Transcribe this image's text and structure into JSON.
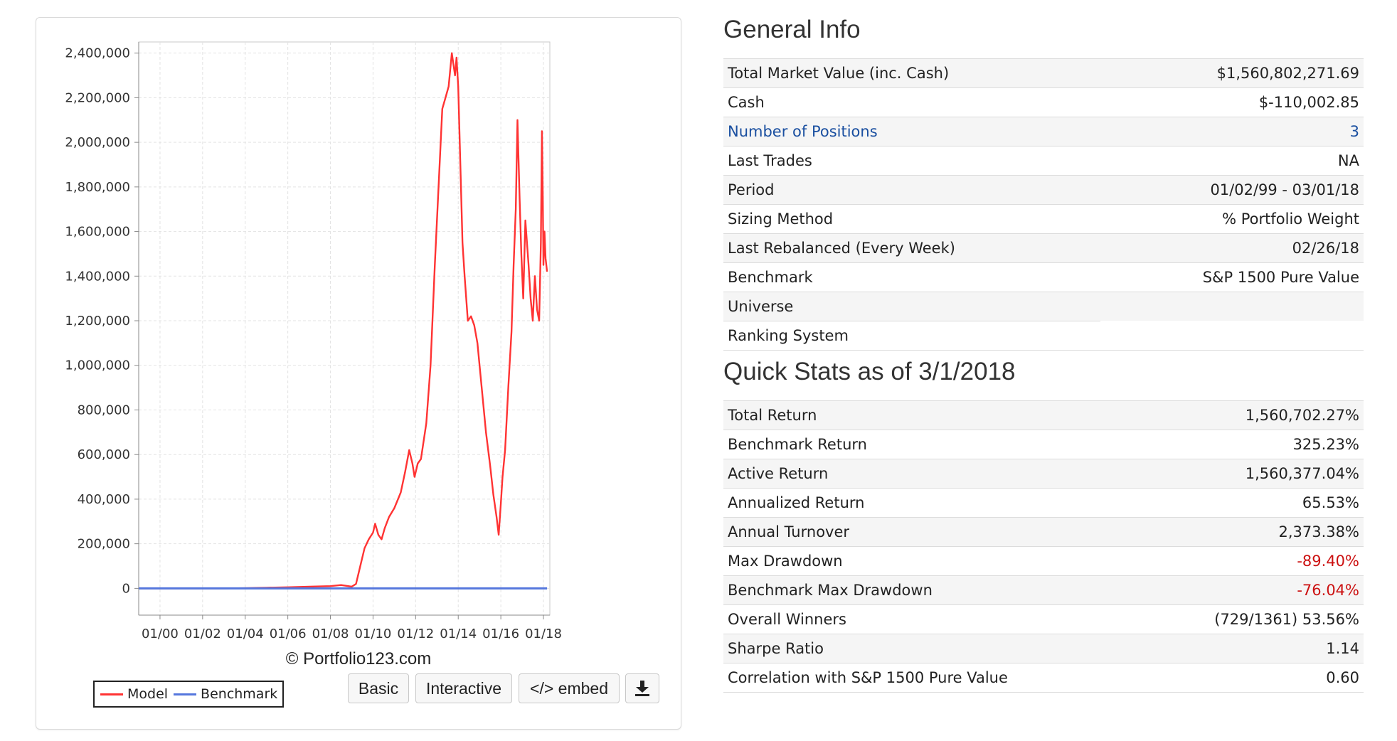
{
  "chart": {
    "copyright": "© Portfolio123.com",
    "legend": [
      {
        "label": "Model",
        "color": "#ff3333"
      },
      {
        "label": "Benchmark",
        "color": "#5577dd"
      }
    ],
    "buttons": {
      "basic": "Basic",
      "interactive": "Interactive",
      "embed": "</> embed",
      "download_icon": "download-icon"
    }
  },
  "chart_data": {
    "type": "line",
    "x_ticks": [
      "01/00",
      "01/02",
      "01/04",
      "01/06",
      "01/08",
      "01/10",
      "01/12",
      "01/14",
      "01/16",
      "01/18"
    ],
    "y_ticks": [
      "2,400,000",
      "2,200,000",
      "2,000,000",
      "1,800,000",
      "1,600,000",
      "1,400,000",
      "1,200,000",
      "1,000,000",
      "800,000",
      "600,000",
      "400,000",
      "200,000",
      "0"
    ],
    "ylim": [
      -120000,
      2450000
    ],
    "xlim": [
      1999.0,
      2018.3
    ],
    "grid": true,
    "legend_position": "bottom-left",
    "series": [
      {
        "name": "Model",
        "color": "#ff3333",
        "x": [
          1999.0,
          2000.0,
          2001.0,
          2002.0,
          2003.0,
          2004.0,
          2004.5,
          2005.0,
          2006.0,
          2007.0,
          2008.0,
          2008.5,
          2009.0,
          2009.2,
          2009.35,
          2009.6,
          2009.8,
          2010.0,
          2010.1,
          2010.25,
          2010.4,
          2010.55,
          2010.75,
          2011.0,
          2011.3,
          2011.5,
          2011.7,
          2011.85,
          2011.95,
          2012.1,
          2012.25,
          2012.5,
          2012.7,
          2012.9,
          2013.1,
          2013.25,
          2013.4,
          2013.55,
          2013.7,
          2013.85,
          2013.92,
          2014.0,
          2014.1,
          2014.2,
          2014.3,
          2014.45,
          2014.6,
          2014.75,
          2014.9,
          2015.1,
          2015.3,
          2015.5,
          2015.65,
          2015.8,
          2015.9,
          2016.0,
          2016.08,
          2016.2,
          2016.35,
          2016.5,
          2016.6,
          2016.7,
          2016.78,
          2016.88,
          2016.96,
          2017.05,
          2017.15,
          2017.3,
          2017.4,
          2017.5,
          2017.6,
          2017.7,
          2017.8,
          2017.88,
          2017.93,
          2017.97,
          2018.0,
          2018.05,
          2018.1,
          2018.17
        ],
        "values": [
          0,
          0,
          0,
          0,
          0,
          1000,
          2000,
          3000,
          5000,
          8000,
          10000,
          15000,
          8000,
          20000,
          80000,
          180000,
          220000,
          250000,
          290000,
          240000,
          220000,
          270000,
          320000,
          360000,
          430000,
          520000,
          620000,
          560000,
          500000,
          560000,
          580000,
          740000,
          1000000,
          1450000,
          1850000,
          2150000,
          2200000,
          2250000,
          2400000,
          2300000,
          2380000,
          2250000,
          1900000,
          1550000,
          1400000,
          1200000,
          1220000,
          1180000,
          1100000,
          900000,
          700000,
          550000,
          420000,
          320000,
          240000,
          380000,
          500000,
          620000,
          900000,
          1150000,
          1450000,
          1700000,
          2100000,
          1750000,
          1500000,
          1300000,
          1650000,
          1450000,
          1300000,
          1200000,
          1400000,
          1250000,
          1200000,
          1550000,
          2050000,
          1750000,
          1450000,
          1600000,
          1480000,
          1420000
        ]
      },
      {
        "name": "Benchmark",
        "color": "#5577dd",
        "x": [
          1999.0,
          2018.17
        ],
        "values": [
          0,
          0
        ]
      }
    ]
  },
  "general_info": {
    "title": "General Info",
    "rows": [
      {
        "label": "Total Market Value (inc. Cash)",
        "value": "$1,560,802,271.69"
      },
      {
        "label": "Cash",
        "value": "$-110,002.85"
      },
      {
        "label": "Number of Positions",
        "value": "3"
      },
      {
        "label": "Last Trades",
        "value": "NA"
      },
      {
        "label": "Period",
        "value": "01/02/99 - 03/01/18"
      },
      {
        "label": "Sizing Method",
        "value": "% Portfolio Weight"
      },
      {
        "label": "Last Rebalanced (Every Week)",
        "value": "02/26/18"
      },
      {
        "label": "Benchmark",
        "value": "S&P 1500 Pure Value"
      },
      {
        "label": "Universe",
        "value": ""
      },
      {
        "label": "Ranking System",
        "value": ""
      }
    ]
  },
  "quick_stats": {
    "title": "Quick Stats as of 3/1/2018",
    "rows": [
      {
        "label": "Total Return",
        "value": "1,560,702.27%"
      },
      {
        "label": "Benchmark Return",
        "value": "325.23%"
      },
      {
        "label": "Active Return",
        "value": "1,560,377.04%"
      },
      {
        "label": "Annualized Return",
        "value": "65.53%"
      },
      {
        "label": "Annual Turnover",
        "value": "2,373.38%"
      },
      {
        "label": "Max Drawdown",
        "value": "-89.40%"
      },
      {
        "label": "Benchmark Max Drawdown",
        "value": "-76.04%"
      },
      {
        "label": "Overall Winners",
        "value": "(729/1361) 53.56%"
      },
      {
        "label": "Sharpe Ratio",
        "value": "1.14"
      },
      {
        "label": "Correlation with S&P 1500 Pure Value",
        "value": "0.60"
      }
    ]
  }
}
